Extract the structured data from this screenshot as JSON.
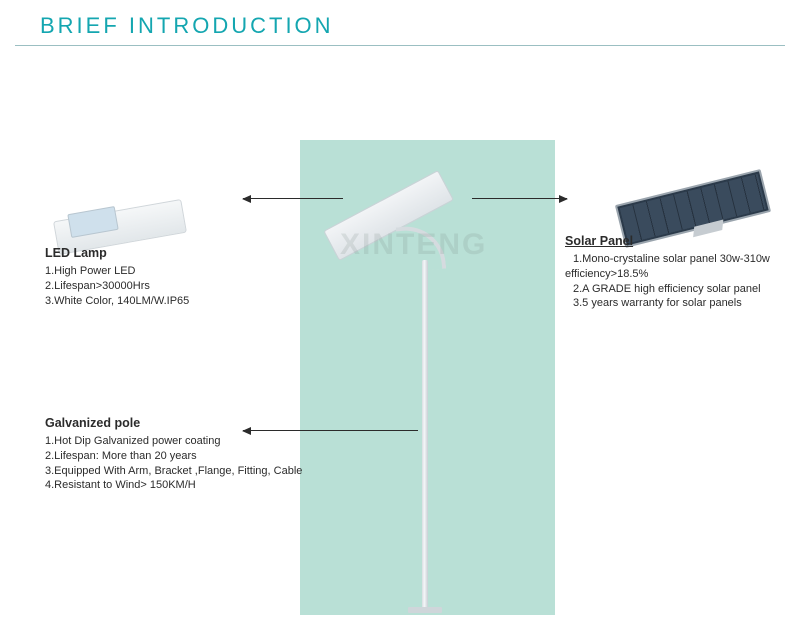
{
  "header": {
    "title": "BRIEF INTRODUCTION"
  },
  "colors": {
    "accent": "#14a6b0",
    "panel_bg": "#b9e0d6",
    "header_rule": "#9bbfc2",
    "text": "#2b2b2b",
    "arrow": "#2b2b2b",
    "pole_light": "#f4f6f8",
    "pole_dark": "#c7cfd4",
    "solar_dark": "#2b3a4a",
    "solar_frame": "#9aa4ad"
  },
  "watermark": "XINTENG",
  "callouts": {
    "led": {
      "title": "LED Lamp",
      "lines": [
        "1.High Power LED",
        "2.Lifespan>30000Hrs",
        "3.White Color, 140LM/W.IP65"
      ]
    },
    "solar": {
      "title": "Solar Panel",
      "lines": [
        "1.Mono-crystaline solar panel 30w-310w",
        "efficiency>18.5%",
        "2.A GRADE high efficiency solar panel",
        "3.5 years warranty for solar panels"
      ]
    },
    "pole": {
      "title": "Galvanized pole",
      "lines": [
        "1.Hot Dip Galvanized power coating",
        "2.Lifespan: More than 20 years",
        "3.Equipped With Arm, Bracket ,Flange, Fitting, Cable",
        "4.Resistant to Wind> 150KM/H"
      ]
    }
  }
}
